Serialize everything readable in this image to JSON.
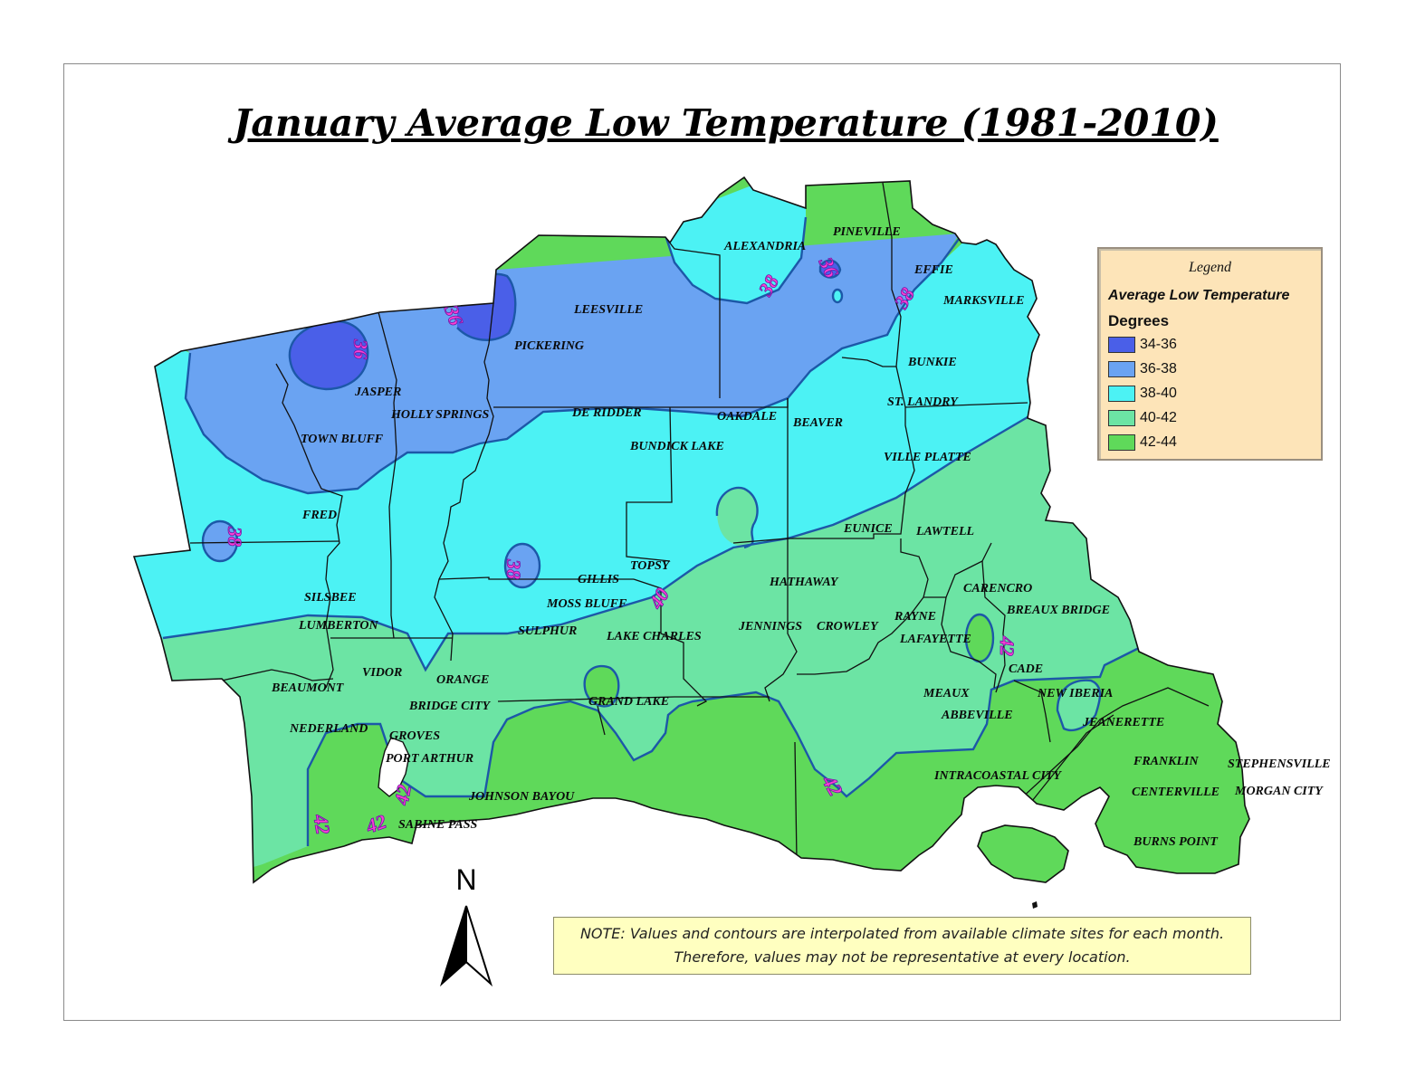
{
  "title": "January Average Low Temperature (1981-2010)",
  "legend": {
    "title": "Legend",
    "subtitle": "Average Low Temperature",
    "units": "Degrees",
    "items": [
      {
        "label": "34-36",
        "color": "#4a5fe8"
      },
      {
        "label": "36-38",
        "color": "#6aa3f2"
      },
      {
        "label": "38-40",
        "color": "#4cf2f4"
      },
      {
        "label": "40-42",
        "color": "#6ce4a4"
      },
      {
        "label": "42-44",
        "color": "#5fd95a"
      }
    ]
  },
  "contour_labels": [
    "36",
    "36",
    "38",
    "36",
    "38",
    "38",
    "38",
    "40",
    "42",
    "42",
    "42",
    "42",
    "42"
  ],
  "cities": [
    "PINEVILLE",
    "ALEXANDRIA",
    "EFFIE",
    "MARKSVILLE",
    "LEESVILLE",
    "PICKERING",
    "BUNKIE",
    "JASPER",
    "HOLLY SPRINGS",
    "DE RIDDER",
    "OAKDALE",
    "BEAVER",
    "ST. LANDRY",
    "TOWN BLUFF",
    "BUNDICK LAKE",
    "VILLE PLATTE",
    "FRED",
    "EUNICE",
    "LAWTELL",
    "TOPSY",
    "GILLIS",
    "HATHAWAY",
    "CARENCRO",
    "SILSBEE",
    "MOSS BLUFF",
    "BREAUX BRIDGE",
    "RAYNE",
    "LUMBERTON",
    "SULPHUR",
    "LAKE CHARLES",
    "JENNINGS",
    "CROWLEY",
    "LAFAYETTE",
    "CADE",
    "VIDOR",
    "ORANGE",
    "BEAUMONT",
    "MEAUX",
    "NEW IBERIA",
    "BRIDGE CITY",
    "GRAND LAKE",
    "ABBEVILLE",
    "JEANERETTE",
    "NEDERLAND",
    "GROVES",
    "PORT ARTHUR",
    "FRANKLIN",
    "STEPHENSVILLE",
    "INTRACOASTAL CITY",
    "CENTERVILLE",
    "MORGAN CITY",
    "JOHNSON BAYOU",
    "SABINE PASS",
    "BURNS POINT"
  ],
  "north_label": "N",
  "note": {
    "line1": "NOTE: Values and contours are interpolated from available climate sites for each month.",
    "line2": "Therefore, values may not be representative at every location."
  }
}
